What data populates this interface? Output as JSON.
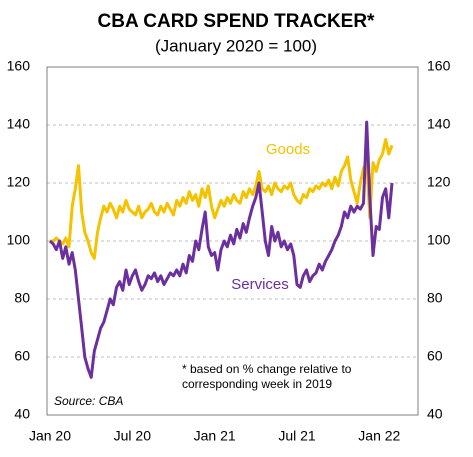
{
  "chart_data": {
    "type": "line",
    "title": "CBA CARD SPEND TRACKER*",
    "subtitle": "(January 2020 = 100)",
    "categories": [
      "Jan 20",
      null,
      null,
      null,
      null,
      null,
      null,
      null,
      null,
      null,
      null,
      null,
      null,
      null,
      null,
      null,
      null,
      null,
      null,
      null,
      null,
      null,
      null,
      null,
      null,
      null,
      "Jul 20",
      null,
      null,
      null,
      null,
      null,
      null,
      null,
      null,
      null,
      null,
      null,
      null,
      null,
      null,
      null,
      null,
      null,
      null,
      null,
      null,
      null,
      null,
      null,
      null,
      null,
      "Jan 21",
      null,
      null,
      null,
      null,
      null,
      null,
      null,
      null,
      null,
      null,
      null,
      null,
      null,
      null,
      null,
      null,
      null,
      null,
      null,
      null,
      null,
      null,
      null,
      null,
      null,
      "Jul 21",
      null,
      null,
      null,
      null,
      null,
      null,
      null,
      null,
      null,
      null,
      null,
      null,
      null,
      null,
      null,
      null,
      null,
      null,
      null,
      null,
      null,
      null,
      null,
      null,
      null,
      "Jan 22",
      null,
      null,
      null,
      null
    ],
    "series": [
      {
        "name": "Goods",
        "color": "#f5c200",
        "values": [
          100,
          100,
          101,
          100,
          99,
          101,
          98,
          112,
          118,
          126,
          110,
          103,
          100,
          96,
          94,
          103,
          108,
          112,
          110,
          113,
          111,
          108,
          112,
          110,
          114,
          111,
          110,
          109,
          112,
          108,
          110,
          111,
          113,
          110,
          109,
          112,
          110,
          113,
          111,
          109,
          114,
          112,
          115,
          113,
          117,
          114,
          116,
          112,
          118,
          115,
          119,
          112,
          108,
          111,
          114,
          112,
          115,
          113,
          116,
          114,
          113,
          117,
          115,
          118,
          116,
          119,
          124,
          118,
          117,
          119,
          116,
          120,
          118,
          117,
          119,
          118,
          120,
          116,
          114,
          113,
          116,
          115,
          118,
          117,
          119,
          118,
          120,
          119,
          121,
          118,
          122,
          119,
          124,
          126,
          129,
          121,
          117,
          113,
          120,
          125,
          128,
          108,
          127,
          124,
          128,
          130,
          135,
          130,
          133
        ]
      },
      {
        "name": "Services",
        "color": "#6b2fa0",
        "values": [
          100,
          99,
          97,
          100,
          94,
          98,
          92,
          96,
          90,
          80,
          70,
          60,
          56,
          53,
          62,
          66,
          70,
          72,
          76,
          80,
          78,
          84,
          86,
          83,
          90,
          85,
          88,
          90,
          86,
          83,
          85,
          88,
          87,
          89,
          86,
          88,
          85,
          87,
          89,
          88,
          90,
          88,
          92,
          89,
          95,
          93,
          100,
          97,
          104,
          110,
          98,
          95,
          96,
          90,
          97,
          100,
          98,
          102,
          99,
          104,
          101,
          106,
          103,
          108,
          112,
          115,
          120,
          110,
          100,
          95,
          105,
          100,
          103,
          98,
          100,
          97,
          99,
          95,
          85,
          84,
          88,
          90,
          86,
          88,
          89,
          92,
          90,
          93,
          95,
          97,
          100,
          102,
          105,
          110,
          108,
          112,
          110,
          112,
          111,
          113,
          141,
          115,
          95,
          105,
          104,
          115,
          118,
          108,
          120
        ]
      }
    ],
    "ylim": [
      40,
      160
    ],
    "yticks": [
      40,
      60,
      80,
      100,
      120,
      140,
      160
    ],
    "y2lim": [
      40,
      160
    ],
    "y2ticks": [
      40,
      60,
      80,
      100,
      120,
      140,
      160
    ],
    "grid": true,
    "note": [
      "*  based on % change relative to",
      "corresponding week in 2019"
    ],
    "source": "Source: CBA"
  }
}
